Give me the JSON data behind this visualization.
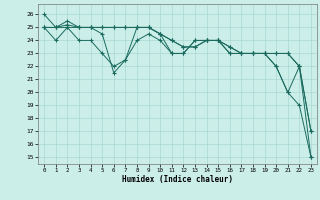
{
  "xlabel": "Humidex (Indice chaleur)",
  "background_color": "#cceee9",
  "grid_color": "#aad8d3",
  "line_color": "#1a6b5e",
  "xlim": [
    -0.5,
    23.5
  ],
  "ylim": [
    14.5,
    26.8
  ],
  "yticks": [
    15,
    16,
    17,
    18,
    19,
    20,
    21,
    22,
    23,
    24,
    25,
    26
  ],
  "xticks": [
    0,
    1,
    2,
    3,
    4,
    5,
    6,
    7,
    8,
    9,
    10,
    11,
    12,
    13,
    14,
    15,
    16,
    17,
    18,
    19,
    20,
    21,
    22,
    23
  ],
  "s1_y": [
    26,
    25,
    25.5,
    25,
    25,
    24.5,
    21.5,
    22.5,
    25,
    25,
    24.5,
    23,
    23,
    24,
    24,
    24,
    23,
    23,
    23,
    23,
    22,
    20,
    22,
    15
  ],
  "s2_y": [
    25,
    25,
    25,
    25,
    25,
    25,
    25,
    25,
    25,
    25,
    24.5,
    24,
    23.5,
    23.5,
    24,
    24,
    23.5,
    23,
    23,
    23,
    23,
    23,
    22,
    17
  ],
  "s3_y": [
    25,
    25,
    25.2,
    25,
    25,
    25,
    25,
    25,
    25,
    25,
    24.5,
    24,
    23.5,
    23.5,
    24,
    24,
    23.5,
    23,
    23,
    23,
    23,
    23,
    22,
    17
  ],
  "s4_y": [
    25,
    24,
    25,
    24,
    24,
    23,
    22,
    22.5,
    24,
    24.5,
    24,
    23,
    23,
    24,
    24,
    24,
    23,
    23,
    23,
    23,
    22,
    20,
    19,
    15
  ]
}
